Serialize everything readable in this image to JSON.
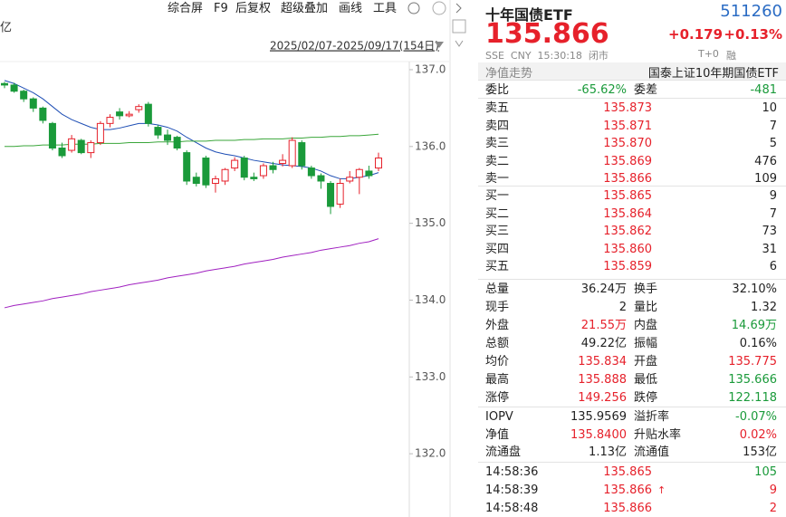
{
  "toolbar": {
    "items": [
      "综合屏",
      "F9",
      "后复权",
      "超级叠加",
      "画线",
      "工具"
    ],
    "unit": "亿",
    "date_range": "2025/02/07-2025/09/17(154日)"
  },
  "chart_data": {
    "type": "candlestick",
    "open": [
      136.82,
      136.8,
      136.72,
      136.62,
      136.5,
      136.3,
      135.98,
      135.95,
      136.08,
      135.92,
      136.05,
      136.3,
      136.45,
      136.4,
      136.48,
      136.55,
      136.25,
      136.15,
      136.12,
      135.92,
      135.6,
      135.85,
      135.52,
      135.55,
      135.72,
      135.85,
      135.6,
      135.62,
      135.75,
      135.78,
      135.75,
      136.05,
      135.72,
      135.62,
      135.52,
      135.25,
      135.55,
      135.6,
      135.68,
      135.72
    ],
    "high": [
      136.84,
      136.83,
      136.74,
      136.64,
      136.52,
      136.32,
      136.05,
      136.15,
      136.1,
      136.08,
      136.33,
      136.42,
      136.5,
      136.46,
      136.55,
      136.58,
      136.28,
      136.22,
      136.14,
      135.95,
      135.66,
      135.88,
      135.62,
      135.72,
      135.86,
      135.88,
      135.66,
      135.78,
      135.8,
      135.9,
      136.12,
      136.08,
      135.75,
      135.65,
      135.55,
      135.58,
      135.68,
      135.72,
      135.75,
      135.92
    ],
    "low": [
      136.76,
      136.7,
      136.58,
      136.45,
      136.3,
      135.95,
      135.85,
      135.92,
      135.9,
      135.85,
      136.02,
      136.25,
      136.35,
      136.38,
      136.44,
      136.26,
      136.1,
      136.02,
      135.95,
      135.5,
      135.48,
      135.46,
      135.4,
      135.5,
      135.68,
      135.56,
      135.55,
      135.58,
      135.65,
      135.74,
      135.72,
      135.7,
      135.58,
      135.45,
      135.12,
      135.2,
      135.52,
      135.38,
      135.58,
      135.68
    ],
    "close": [
      136.8,
      136.72,
      136.62,
      136.5,
      136.34,
      135.98,
      135.88,
      136.1,
      135.92,
      136.05,
      136.3,
      136.38,
      136.4,
      136.42,
      136.52,
      136.3,
      136.15,
      136.08,
      135.98,
      135.55,
      135.52,
      135.5,
      135.58,
      135.7,
      135.82,
      135.6,
      135.58,
      135.75,
      135.7,
      135.82,
      136.08,
      135.75,
      135.62,
      135.55,
      135.22,
      135.52,
      135.6,
      135.7,
      135.62,
      135.85
    ],
    "up_color": "#e6212b",
    "down_color": "#1a9a3a",
    "moving_averages": [
      {
        "color": "#1f4fb5",
        "values": [
          136.86,
          136.82,
          136.76,
          136.7,
          136.62,
          136.52,
          136.42,
          136.35,
          136.3,
          136.25,
          136.22,
          136.22,
          136.24,
          136.27,
          136.3,
          136.3,
          136.28,
          136.25,
          136.2,
          136.12,
          136.05,
          135.98,
          135.93,
          135.9,
          135.88,
          135.85,
          135.82,
          135.8,
          135.78,
          135.76,
          135.75,
          135.74,
          135.72,
          135.68,
          135.62,
          135.58,
          135.58,
          135.6,
          135.62,
          135.66
        ]
      },
      {
        "color": "#3aa63a",
        "values": [
          136.0,
          136.0,
          136.01,
          136.01,
          136.02,
          136.02,
          136.02,
          136.03,
          136.03,
          136.03,
          136.04,
          136.04,
          136.04,
          136.05,
          136.05,
          136.05,
          136.06,
          136.06,
          136.06,
          136.07,
          136.07,
          136.07,
          136.08,
          136.08,
          136.08,
          136.09,
          136.09,
          136.1,
          136.1,
          136.1,
          136.11,
          136.11,
          136.12,
          136.12,
          136.13,
          136.13,
          136.14,
          136.14,
          136.15,
          136.16
        ]
      },
      {
        "color": "#a020c0",
        "values": [
          133.9,
          133.93,
          133.95,
          133.97,
          133.99,
          134.02,
          134.04,
          134.06,
          134.08,
          134.11,
          134.13,
          134.15,
          134.17,
          134.2,
          134.22,
          134.24,
          134.26,
          134.29,
          134.31,
          134.33,
          134.35,
          134.38,
          134.4,
          134.42,
          134.44,
          134.47,
          134.49,
          134.51,
          134.53,
          134.56,
          134.58,
          134.6,
          134.62,
          134.65,
          134.67,
          134.69,
          134.71,
          134.74,
          134.76,
          134.8
        ]
      }
    ],
    "ylim": [
      131.2,
      137.2
    ],
    "yticks": [
      {
        "value": 132,
        "label": "132.0"
      },
      {
        "value": 133,
        "label": "133.0"
      },
      {
        "value": 134,
        "label": "134.0"
      },
      {
        "value": 135,
        "label": "135.0"
      },
      {
        "value": 136,
        "label": "136.0"
      },
      {
        "value": 137,
        "label": "137.0"
      }
    ]
  },
  "quote": {
    "name": "十年国债ETF",
    "code": "511260",
    "price": "135.866",
    "change": "+0.179",
    "change_pct": "+0.13%",
    "meta": "SSE  CNY  15:30:18  闭市",
    "tag": "T+0",
    "tag2": "融"
  },
  "nav_tab": "净值走势",
  "index_name": "国泰上证10年期国债ETF",
  "ratio": [
    "委比",
    "-65.62%",
    "委差",
    "-481"
  ],
  "sells": [
    [
      "卖五",
      "135.873",
      "10"
    ],
    [
      "卖四",
      "135.871",
      "7"
    ],
    [
      "卖三",
      "135.870",
      "5"
    ],
    [
      "卖二",
      "135.869",
      "476"
    ],
    [
      "卖一",
      "135.866",
      "109"
    ]
  ],
  "buys": [
    [
      "买一",
      "135.865",
      "9"
    ],
    [
      "买二",
      "135.864",
      "7"
    ],
    [
      "买三",
      "135.862",
      "73"
    ],
    [
      "买四",
      "135.860",
      "31"
    ],
    [
      "买五",
      "135.859",
      "6"
    ]
  ],
  "stats": [
    [
      "总量",
      "36.24万",
      "换手",
      "32.10%"
    ],
    [
      "现手",
      "2",
      "量比",
      "1.32"
    ],
    [
      "外盘",
      "21.55万",
      "内盘",
      "14.69万"
    ],
    [
      "总额",
      "49.22亿",
      "振幅",
      "0.16%"
    ],
    [
      "均价",
      "135.834",
      "开盘",
      "135.775"
    ],
    [
      "最高",
      "135.888",
      "最低",
      "135.666"
    ],
    [
      "涨停",
      "149.256",
      "跌停",
      "122.118"
    ]
  ],
  "fund": [
    [
      "IOPV",
      "135.9569",
      "溢折率",
      "-0.07%"
    ],
    [
      "净值",
      "135.8400",
      "升贴水率",
      "0.02%"
    ],
    [
      "流通盘",
      "1.13亿",
      "流通值",
      "153亿"
    ]
  ],
  "trades": [
    [
      "14:58:36",
      "135.865",
      "105"
    ],
    [
      "14:58:39",
      "135.866",
      "9"
    ],
    [
      "14:58:48",
      "135.866",
      "2"
    ]
  ]
}
